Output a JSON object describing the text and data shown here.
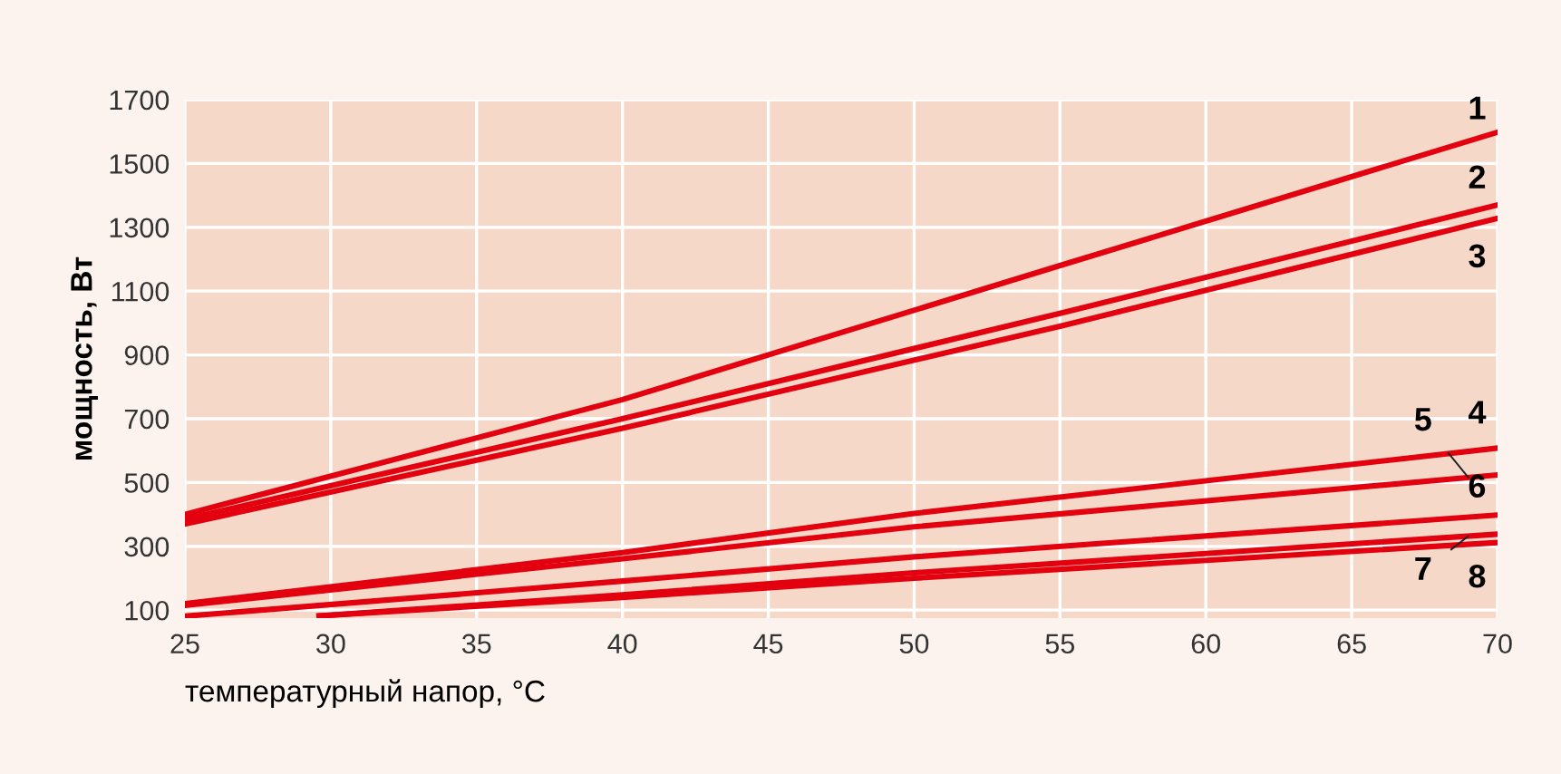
{
  "chart_data": {
    "type": "line",
    "xlabel": "температурный напор, °C",
    "ylabel": "мощность, Вт",
    "xlim": [
      25,
      70
    ],
    "xticks": [
      25,
      30,
      35,
      40,
      45,
      50,
      55,
      60,
      65,
      70
    ],
    "ylim": [
      75,
      1700
    ],
    "yticks": [
      100,
      300,
      500,
      700,
      900,
      1100,
      1300,
      1500,
      1700
    ],
    "grid": true,
    "line_style": "solid",
    "series": [
      {
        "color": "#e3000f",
        "x": [
          25,
          40,
          55,
          70
        ],
        "values": [
          400,
          760,
          1180,
          1598
        ]
      },
      {
        "color": "#e3000f",
        "x": [
          25,
          40,
          55,
          70
        ],
        "values": [
          385,
          700,
          1030,
          1370
        ]
      },
      {
        "color": "#e3000f",
        "x": [
          25,
          40,
          55,
          70
        ],
        "values": [
          370,
          670,
          990,
          1328
        ]
      },
      {
        "color": "#e3000f",
        "x": [
          25,
          40,
          50,
          70
        ],
        "values": [
          120,
          280,
          403,
          608
        ]
      },
      {
        "color": "#e3000f",
        "x": [
          25,
          40,
          50,
          70
        ],
        "values": [
          115,
          261,
          361,
          524
        ]
      },
      {
        "color": "#e3000f",
        "x": [
          25,
          40,
          50,
          70
        ],
        "values": [
          81,
          191,
          267,
          398
        ]
      },
      {
        "color": "#e3000f",
        "x": [
          29.6,
          40,
          50,
          70
        ],
        "values": [
          82,
          148,
          217,
          338
        ]
      },
      {
        "color": "#e3000f",
        "x": [
          29.6,
          40,
          50,
          70
        ],
        "values": [
          82,
          140,
          200,
          312
        ]
      }
    ],
    "annotations": [
      "1",
      "2",
      "3",
      "4",
      "5",
      "6",
      "7",
      "8"
    ]
  }
}
